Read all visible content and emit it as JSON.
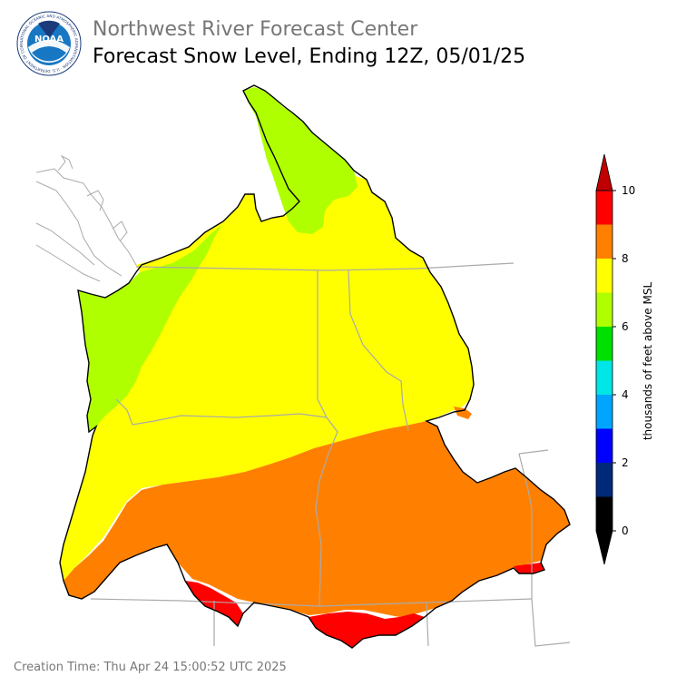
{
  "header": {
    "org_title": "Northwest River Forecast Center",
    "product_title": "Forecast Snow Level, Ending 12Z, 05/01/25",
    "logo_text": "NOAA",
    "logo_ring_text": "NATIONAL OCEANIC AND ATMOSPHERIC ADMINISTRATION · U.S. DEPARTMENT OF COMMERCE"
  },
  "legend": {
    "label": "thousands of feet above MSL",
    "ticks": [
      "0",
      "2",
      "4",
      "6",
      "8",
      "10"
    ],
    "bins": [
      {
        "range": "0-1",
        "color": "#000000"
      },
      {
        "range": "1-2",
        "color": "#00297a"
      },
      {
        "range": "2-3",
        "color": "#0000ff"
      },
      {
        "range": "3-4",
        "color": "#00a5ff"
      },
      {
        "range": "4-5",
        "color": "#00e5e5"
      },
      {
        "range": "5-6",
        "color": "#00e000"
      },
      {
        "range": "6-7",
        "color": "#b0ff00"
      },
      {
        "range": "7-8",
        "color": "#ffff00"
      },
      {
        "range": "8-9",
        "color": "#ff8000"
      },
      {
        "range": "9-10",
        "color": "#ff0000"
      }
    ],
    "over_color": "#c00000",
    "under_color": "#000000"
  },
  "map": {
    "levels_shown": [
      "6-7",
      "7-8",
      "8-9",
      "9-10"
    ],
    "boundary_color": "#000000",
    "state_line_color": "#aaaaaa"
  },
  "footer": {
    "creation_time": "Creation Time: Thu Apr 24 15:00:52 UTC 2025"
  }
}
